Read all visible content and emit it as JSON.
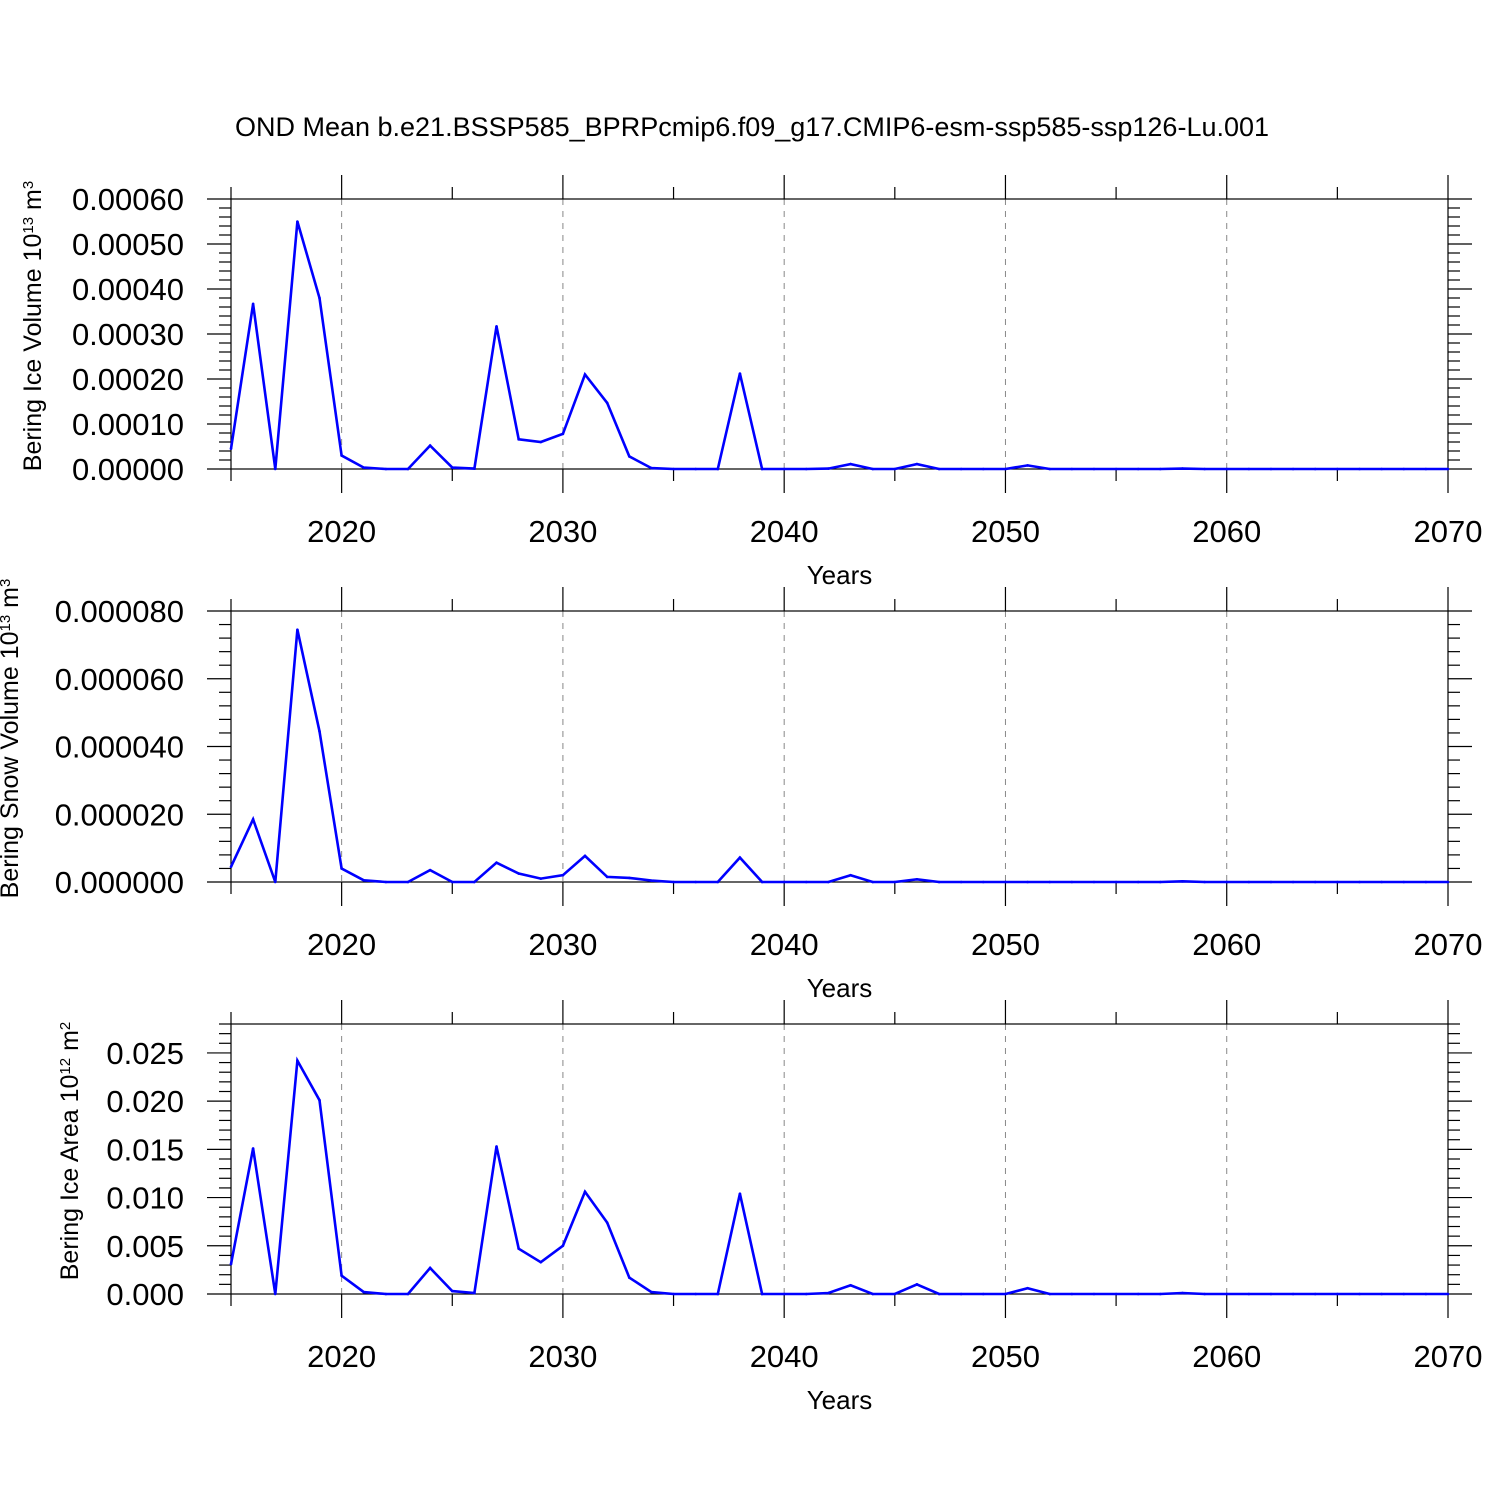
{
  "title": "OND Mean b.e21.BSSP585_BPRPcmip6.f09_g17.CMIP6-esm-ssp585-ssp126-Lu.001",
  "colors": {
    "series": "#0000ff",
    "axes": "#000000",
    "grid": "#888888"
  },
  "chart_data": [
    {
      "type": "line",
      "title": "OND Mean b.e21.BSSP585_BPRPcmip6.f09_g17.CMIP6-esm-ssp585-ssp126-Lu.001",
      "ylabel": {
        "base": "Bering Ice Volume 10",
        "exp": "13",
        "unit": " m",
        "unit_exp": "3"
      },
      "xlabel": "Years",
      "xlim": [
        2015,
        2070
      ],
      "ylim": [
        0,
        0.0006
      ],
      "xticks": [
        2020,
        2030,
        2040,
        2050,
        2060,
        2070
      ],
      "yticks": [
        0,
        0.0001,
        0.0002,
        0.0003,
        0.0004,
        0.0005,
        0.0006
      ],
      "ytick_labels": [
        "0.00000",
        "0.00010",
        "0.00020",
        "0.00030",
        "0.00040",
        "0.00050",
        "0.00060"
      ],
      "grid": "x-dashed",
      "x": [
        2015,
        2016,
        2017,
        2018,
        2019,
        2020,
        2021,
        2022,
        2023,
        2024,
        2025,
        2026,
        2027,
        2028,
        2029,
        2030,
        2031,
        2032,
        2033,
        2034,
        2035,
        2036,
        2037,
        2038,
        2039,
        2040,
        2041,
        2042,
        2043,
        2044,
        2045,
        2046,
        2047,
        2048,
        2049,
        2050,
        2051,
        2052,
        2053,
        2054,
        2055,
        2056,
        2057,
        2058,
        2059,
        2060,
        2061,
        2062,
        2063,
        2064,
        2065,
        2066,
        2067,
        2068,
        2069,
        2070
      ],
      "y": [
        4.5e-05,
        0.000367,
        0,
        0.00055,
        0.00038,
        3e-05,
        3e-06,
        0,
        0,
        5.2e-05,
        3e-06,
        1e-06,
        0.000317,
        6.6e-05,
        6e-05,
        7.8e-05,
        0.00021,
        0.000147,
        2.8e-05,
        2e-06,
        0,
        0,
        0,
        0.000212,
        0,
        0,
        0,
        1e-06,
        1.1e-05,
        0,
        0,
        1.1e-05,
        0,
        0,
        0,
        0,
        8e-06,
        0,
        0,
        0,
        0,
        0,
        0,
        1e-06,
        0,
        0,
        0,
        0,
        0,
        0,
        0,
        0,
        0,
        0,
        0,
        0
      ]
    },
    {
      "type": "line",
      "ylabel": {
        "base": "Bering Snow Volume 10",
        "exp": "13",
        "unit": " m",
        "unit_exp": "3"
      },
      "xlabel": "Years",
      "xlim": [
        2015,
        2070
      ],
      "ylim": [
        0,
        8e-05
      ],
      "xticks": [
        2020,
        2030,
        2040,
        2050,
        2060,
        2070
      ],
      "yticks": [
        0,
        2e-05,
        4e-05,
        6e-05,
        8e-05
      ],
      "ytick_labels": [
        "0.000000",
        "0.000020",
        "0.000040",
        "0.000060",
        "0.000080"
      ],
      "grid": "x-dashed",
      "x": [
        2015,
        2016,
        2017,
        2018,
        2019,
        2020,
        2021,
        2022,
        2023,
        2024,
        2025,
        2026,
        2027,
        2028,
        2029,
        2030,
        2031,
        2032,
        2033,
        2034,
        2035,
        2036,
        2037,
        2038,
        2039,
        2040,
        2041,
        2042,
        2043,
        2044,
        2045,
        2046,
        2047,
        2048,
        2049,
        2050,
        2051,
        2052,
        2053,
        2054,
        2055,
        2056,
        2057,
        2058,
        2059,
        2060,
        2061,
        2062,
        2063,
        2064,
        2065,
        2066,
        2067,
        2068,
        2069,
        2070
      ],
      "y": [
        4.5e-06,
        1.85e-05,
        0,
        7.45e-05,
        4.45e-05,
        4e-06,
        5e-07,
        0,
        0,
        3.5e-06,
        0,
        0,
        5.7e-06,
        2.5e-06,
        1e-06,
        2e-06,
        7.7e-06,
        1.5e-06,
        1.2e-06,
        4e-07,
        0,
        0,
        0,
        7.2e-06,
        0,
        0,
        0,
        0,
        2e-06,
        0,
        0,
        8e-07,
        0,
        0,
        0,
        0,
        0,
        0,
        0,
        0,
        0,
        0,
        0,
        2e-07,
        0,
        0,
        0,
        0,
        0,
        0,
        0,
        0,
        0,
        0,
        0,
        0
      ]
    },
    {
      "type": "line",
      "ylabel": {
        "base": "Bering Ice Area 10",
        "exp": "12",
        "unit": " m",
        "unit_exp": "2"
      },
      "xlabel": "Years",
      "xlim": [
        2015,
        2070
      ],
      "ylim": [
        0,
        0.028
      ],
      "xticks": [
        2020,
        2030,
        2040,
        2050,
        2060,
        2070
      ],
      "yticks": [
        0,
        0.005,
        0.01,
        0.015,
        0.02,
        0.025
      ],
      "ytick_labels": [
        "0.000",
        "0.005",
        "0.010",
        "0.015",
        "0.020",
        "0.025"
      ],
      "grid": "x-dashed",
      "x": [
        2015,
        2016,
        2017,
        2018,
        2019,
        2020,
        2021,
        2022,
        2023,
        2024,
        2025,
        2026,
        2027,
        2028,
        2029,
        2030,
        2031,
        2032,
        2033,
        2034,
        2035,
        2036,
        2037,
        2038,
        2039,
        2040,
        2041,
        2042,
        2043,
        2044,
        2045,
        2046,
        2047,
        2048,
        2049,
        2050,
        2051,
        2052,
        2053,
        2054,
        2055,
        2056,
        2057,
        2058,
        2059,
        2060,
        2061,
        2062,
        2063,
        2064,
        2065,
        2066,
        2067,
        2068,
        2069,
        2070
      ],
      "y": [
        0.0031,
        0.0151,
        0,
        0.0242,
        0.0201,
        0.0019,
        0.0002,
        0,
        0,
        0.0027,
        0.0003,
        0.0001,
        0.0153,
        0.0047,
        0.0033,
        0.005,
        0.0106,
        0.0074,
        0.0017,
        0.0002,
        0,
        0,
        0,
        0.0104,
        0,
        0,
        0,
        0.0001,
        0.0009,
        0,
        0,
        0.001,
        0,
        0,
        0,
        0,
        0.0006,
        0,
        0,
        0,
        0,
        0,
        0,
        0.0001,
        0,
        0,
        0,
        0,
        0,
        0,
        0,
        0,
        0,
        0,
        0,
        0
      ]
    }
  ]
}
